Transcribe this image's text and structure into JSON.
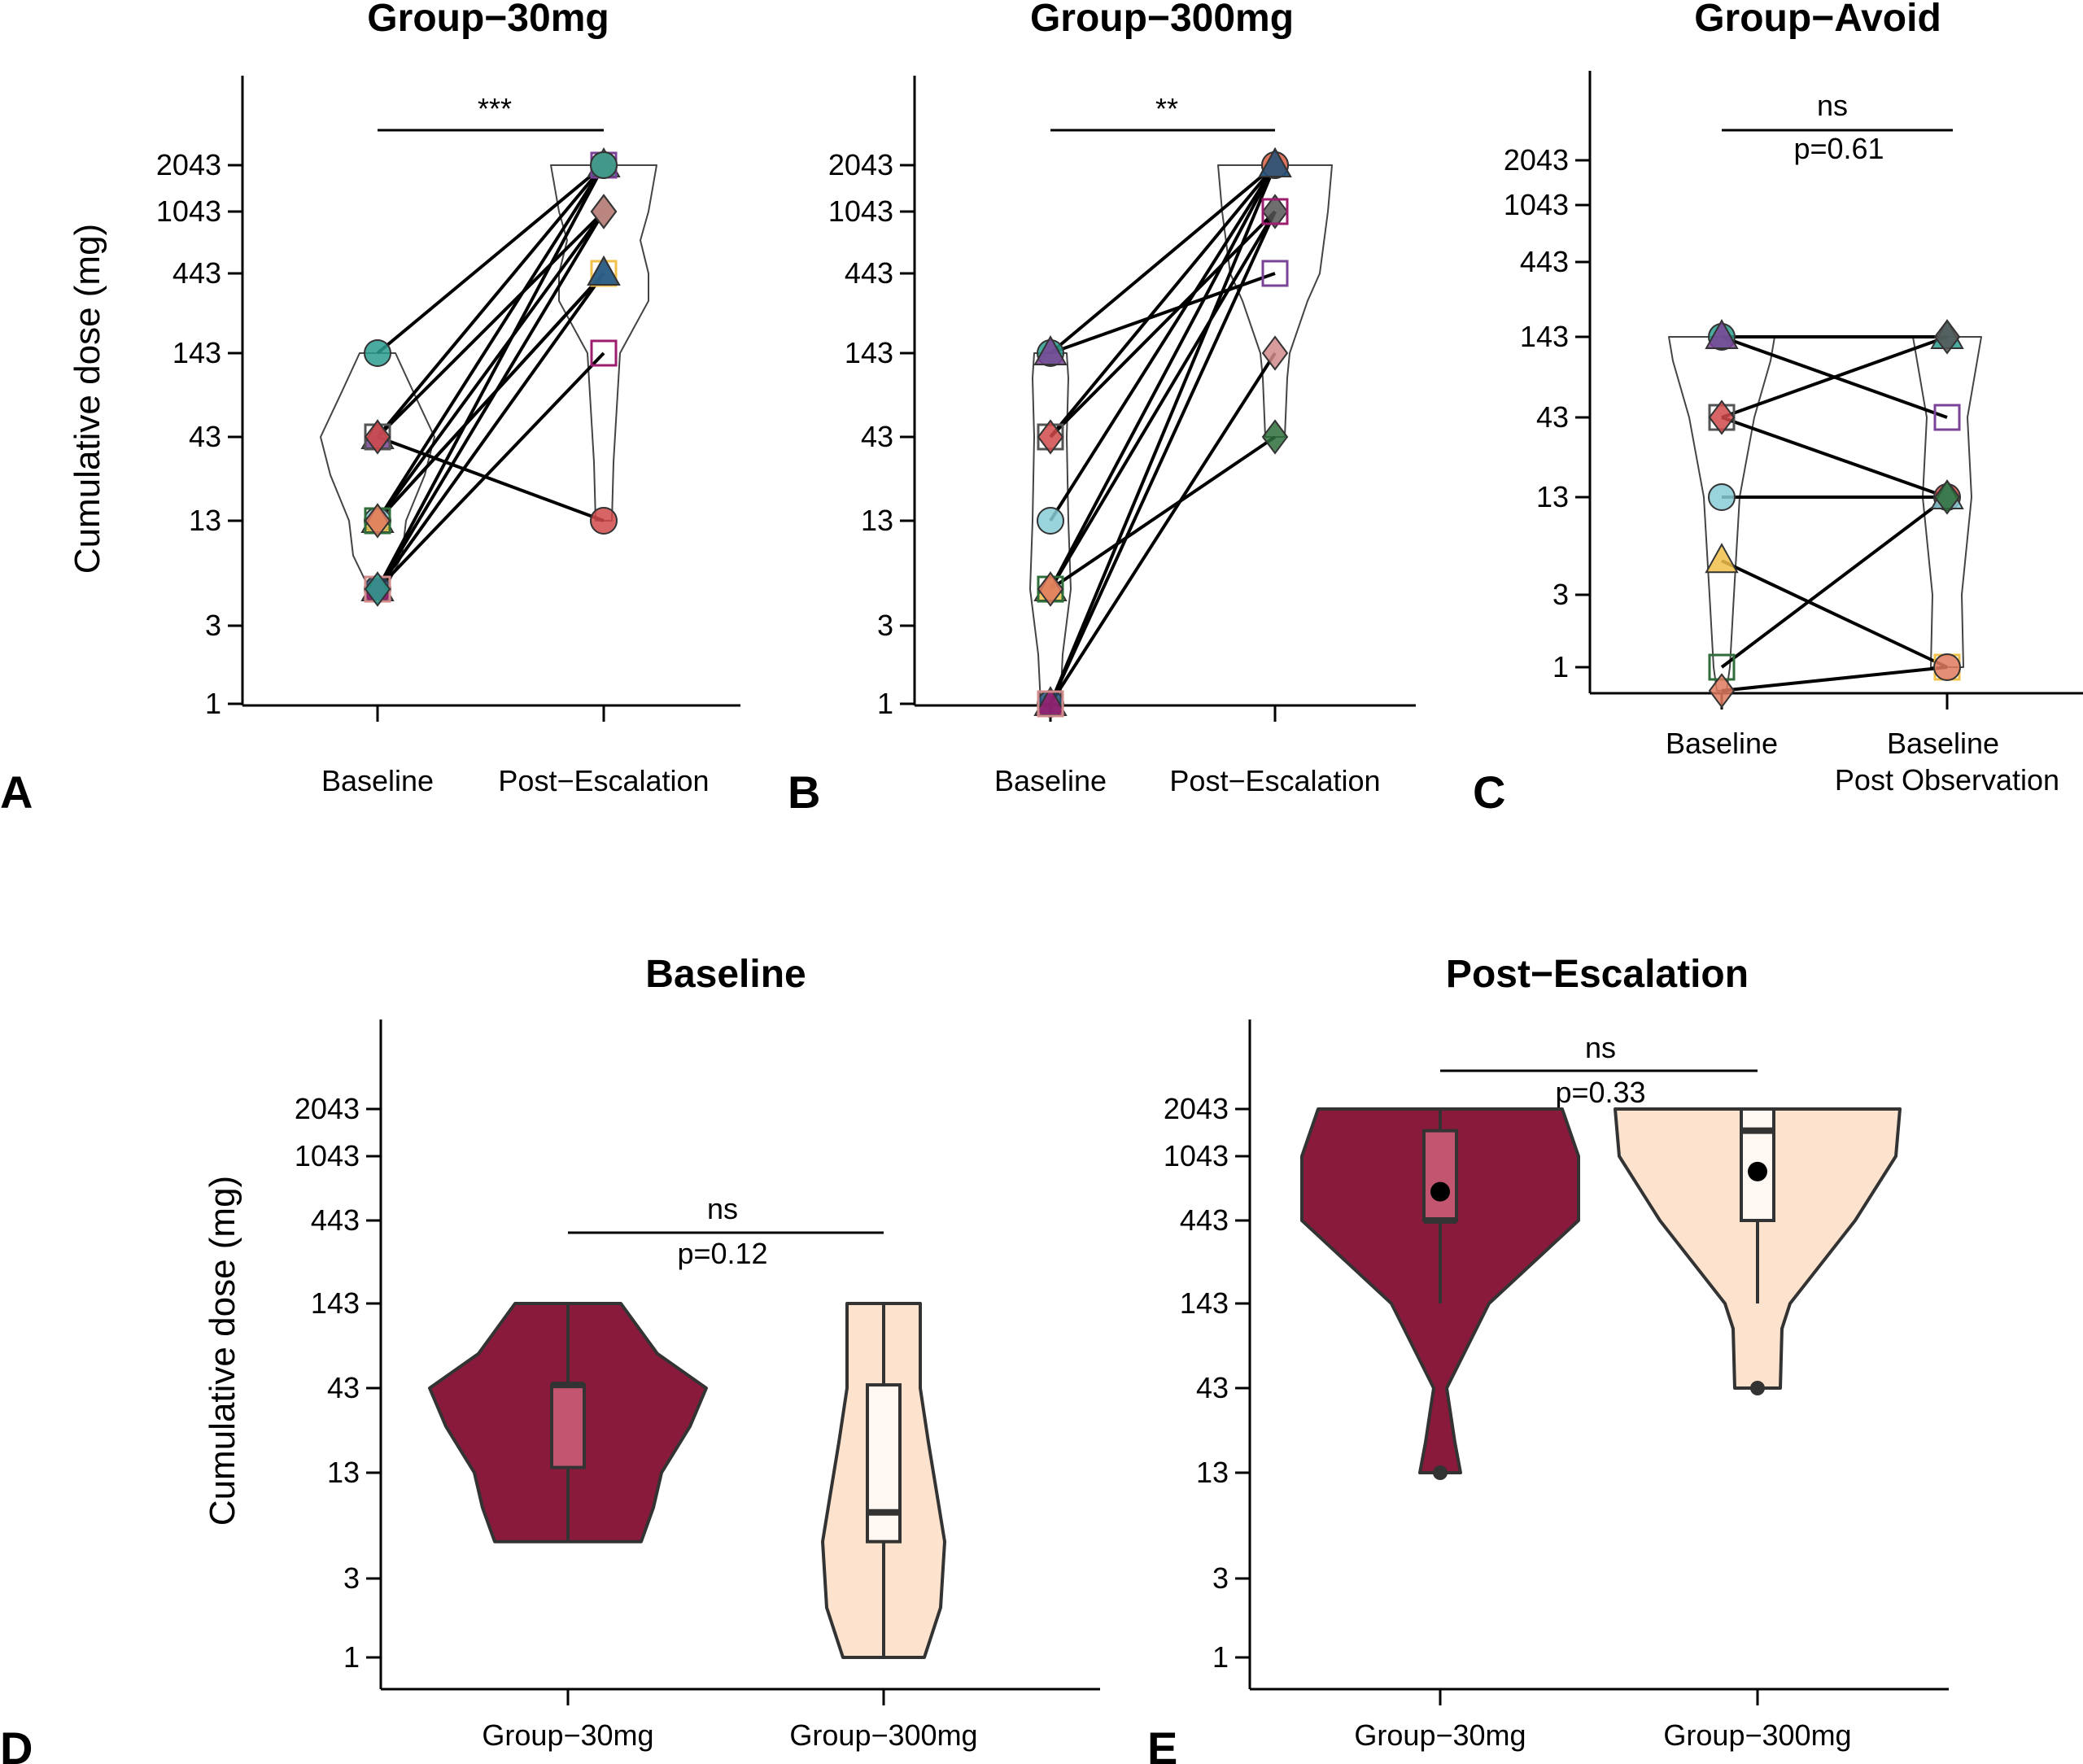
{
  "y_ticks": [
    "1",
    "3",
    "13",
    "43",
    "143",
    "443",
    "1043",
    "2043"
  ],
  "chart_data": [
    {
      "panel": "A",
      "type": "scatter",
      "title": "Group−30mg",
      "ylabel": "Cumulative dose (mg)",
      "categories": [
        "Baseline",
        "Post−Escalation"
      ],
      "significance": "***",
      "pairs": [
        {
          "from": 143,
          "to": 2043
        },
        {
          "from": 43,
          "to": 2043
        },
        {
          "from": 43,
          "to": 1043
        },
        {
          "from": 43,
          "to": 13
        },
        {
          "from": 13,
          "to": 443
        },
        {
          "from": 13,
          "to": 443
        },
        {
          "from": 13,
          "to": 1043
        },
        {
          "from": 13,
          "to": 2043
        },
        {
          "from": 5,
          "to": 443
        },
        {
          "from": 5,
          "to": 143
        },
        {
          "from": 5,
          "to": 1043
        },
        {
          "from": 5,
          "to": 2043
        }
      ]
    },
    {
      "panel": "B",
      "type": "scatter",
      "title": "Group−300mg",
      "categories": [
        "Baseline",
        "Post−Escalation"
      ],
      "significance": "**",
      "pairs": [
        {
          "from": 143,
          "to": 2043
        },
        {
          "from": 143,
          "to": 443
        },
        {
          "from": 43,
          "to": 1043
        },
        {
          "from": 43,
          "to": 2043
        },
        {
          "from": 13,
          "to": 2043
        },
        {
          "from": 5,
          "to": 1043
        },
        {
          "from": 5,
          "to": 43
        },
        {
          "from": 5,
          "to": 2043
        },
        {
          "from": 1,
          "to": 2043
        },
        {
          "from": 1,
          "to": 1043
        },
        {
          "from": 1,
          "to": 143
        }
      ]
    },
    {
      "panel": "C",
      "type": "scatter",
      "title": "Group−Avoid",
      "categories": [
        "Baseline",
        "Baseline\nPost Observation"
      ],
      "significance": "ns",
      "p_value": "p=0.61",
      "pairs": [
        {
          "from": 143,
          "to": 143
        },
        {
          "from": 143,
          "to": 43
        },
        {
          "from": 43,
          "to": 143
        },
        {
          "from": 43,
          "to": 13
        },
        {
          "from": 13,
          "to": 13
        },
        {
          "from": 5,
          "to": 1
        },
        {
          "from": 1,
          "to": 13
        },
        {
          "from": 0.7,
          "to": 1
        }
      ]
    },
    {
      "panel": "D",
      "type": "violin",
      "title": "Baseline",
      "ylabel": "Cumulative dose (mg)",
      "categories": [
        "Group−30mg",
        "Group−300mg"
      ],
      "significance": "ns",
      "p_value": "p=0.12",
      "series": [
        {
          "category": "Group−30mg",
          "min": 5,
          "q1": 14,
          "median": 45,
          "q3": 45,
          "max": 143
        },
        {
          "category": "Group−300mg",
          "min": 1,
          "q1": 5,
          "median": 7.5,
          "q3": 45,
          "max": 143
        }
      ]
    },
    {
      "panel": "E",
      "type": "violin",
      "title": "Post−Escalation",
      "categories": [
        "Group−30mg",
        "Group−300mg"
      ],
      "significance": "ns",
      "p_value": "p=0.33",
      "series": [
        {
          "category": "Group−30mg",
          "min": 143,
          "q1": 443,
          "median": 443,
          "q3": 1500,
          "max": 2043,
          "mean": 650,
          "outliers": [
            13
          ]
        },
        {
          "category": "Group−300mg",
          "min": 143,
          "q1": 443,
          "median": 1500,
          "q3": 2043,
          "max": 2043,
          "mean": 850,
          "outliers": [
            43
          ]
        }
      ]
    }
  ],
  "colors": {
    "violin_30mg": "#8a1a3c",
    "box_30mg": "#c25570",
    "violin_300mg": "#fde3cd",
    "box_300mg": "#fff7f2",
    "line": "#000000",
    "outline": "#333333"
  },
  "marker_colors": [
    "#2a9d8f",
    "#7b4397",
    "#555555",
    "#d04a4a",
    "#87cbd6",
    "#f0c04a",
    "#2e6e3a",
    "#e07a5f",
    "#1f4e79",
    "#9c1c6e",
    "#d28b8b"
  ]
}
